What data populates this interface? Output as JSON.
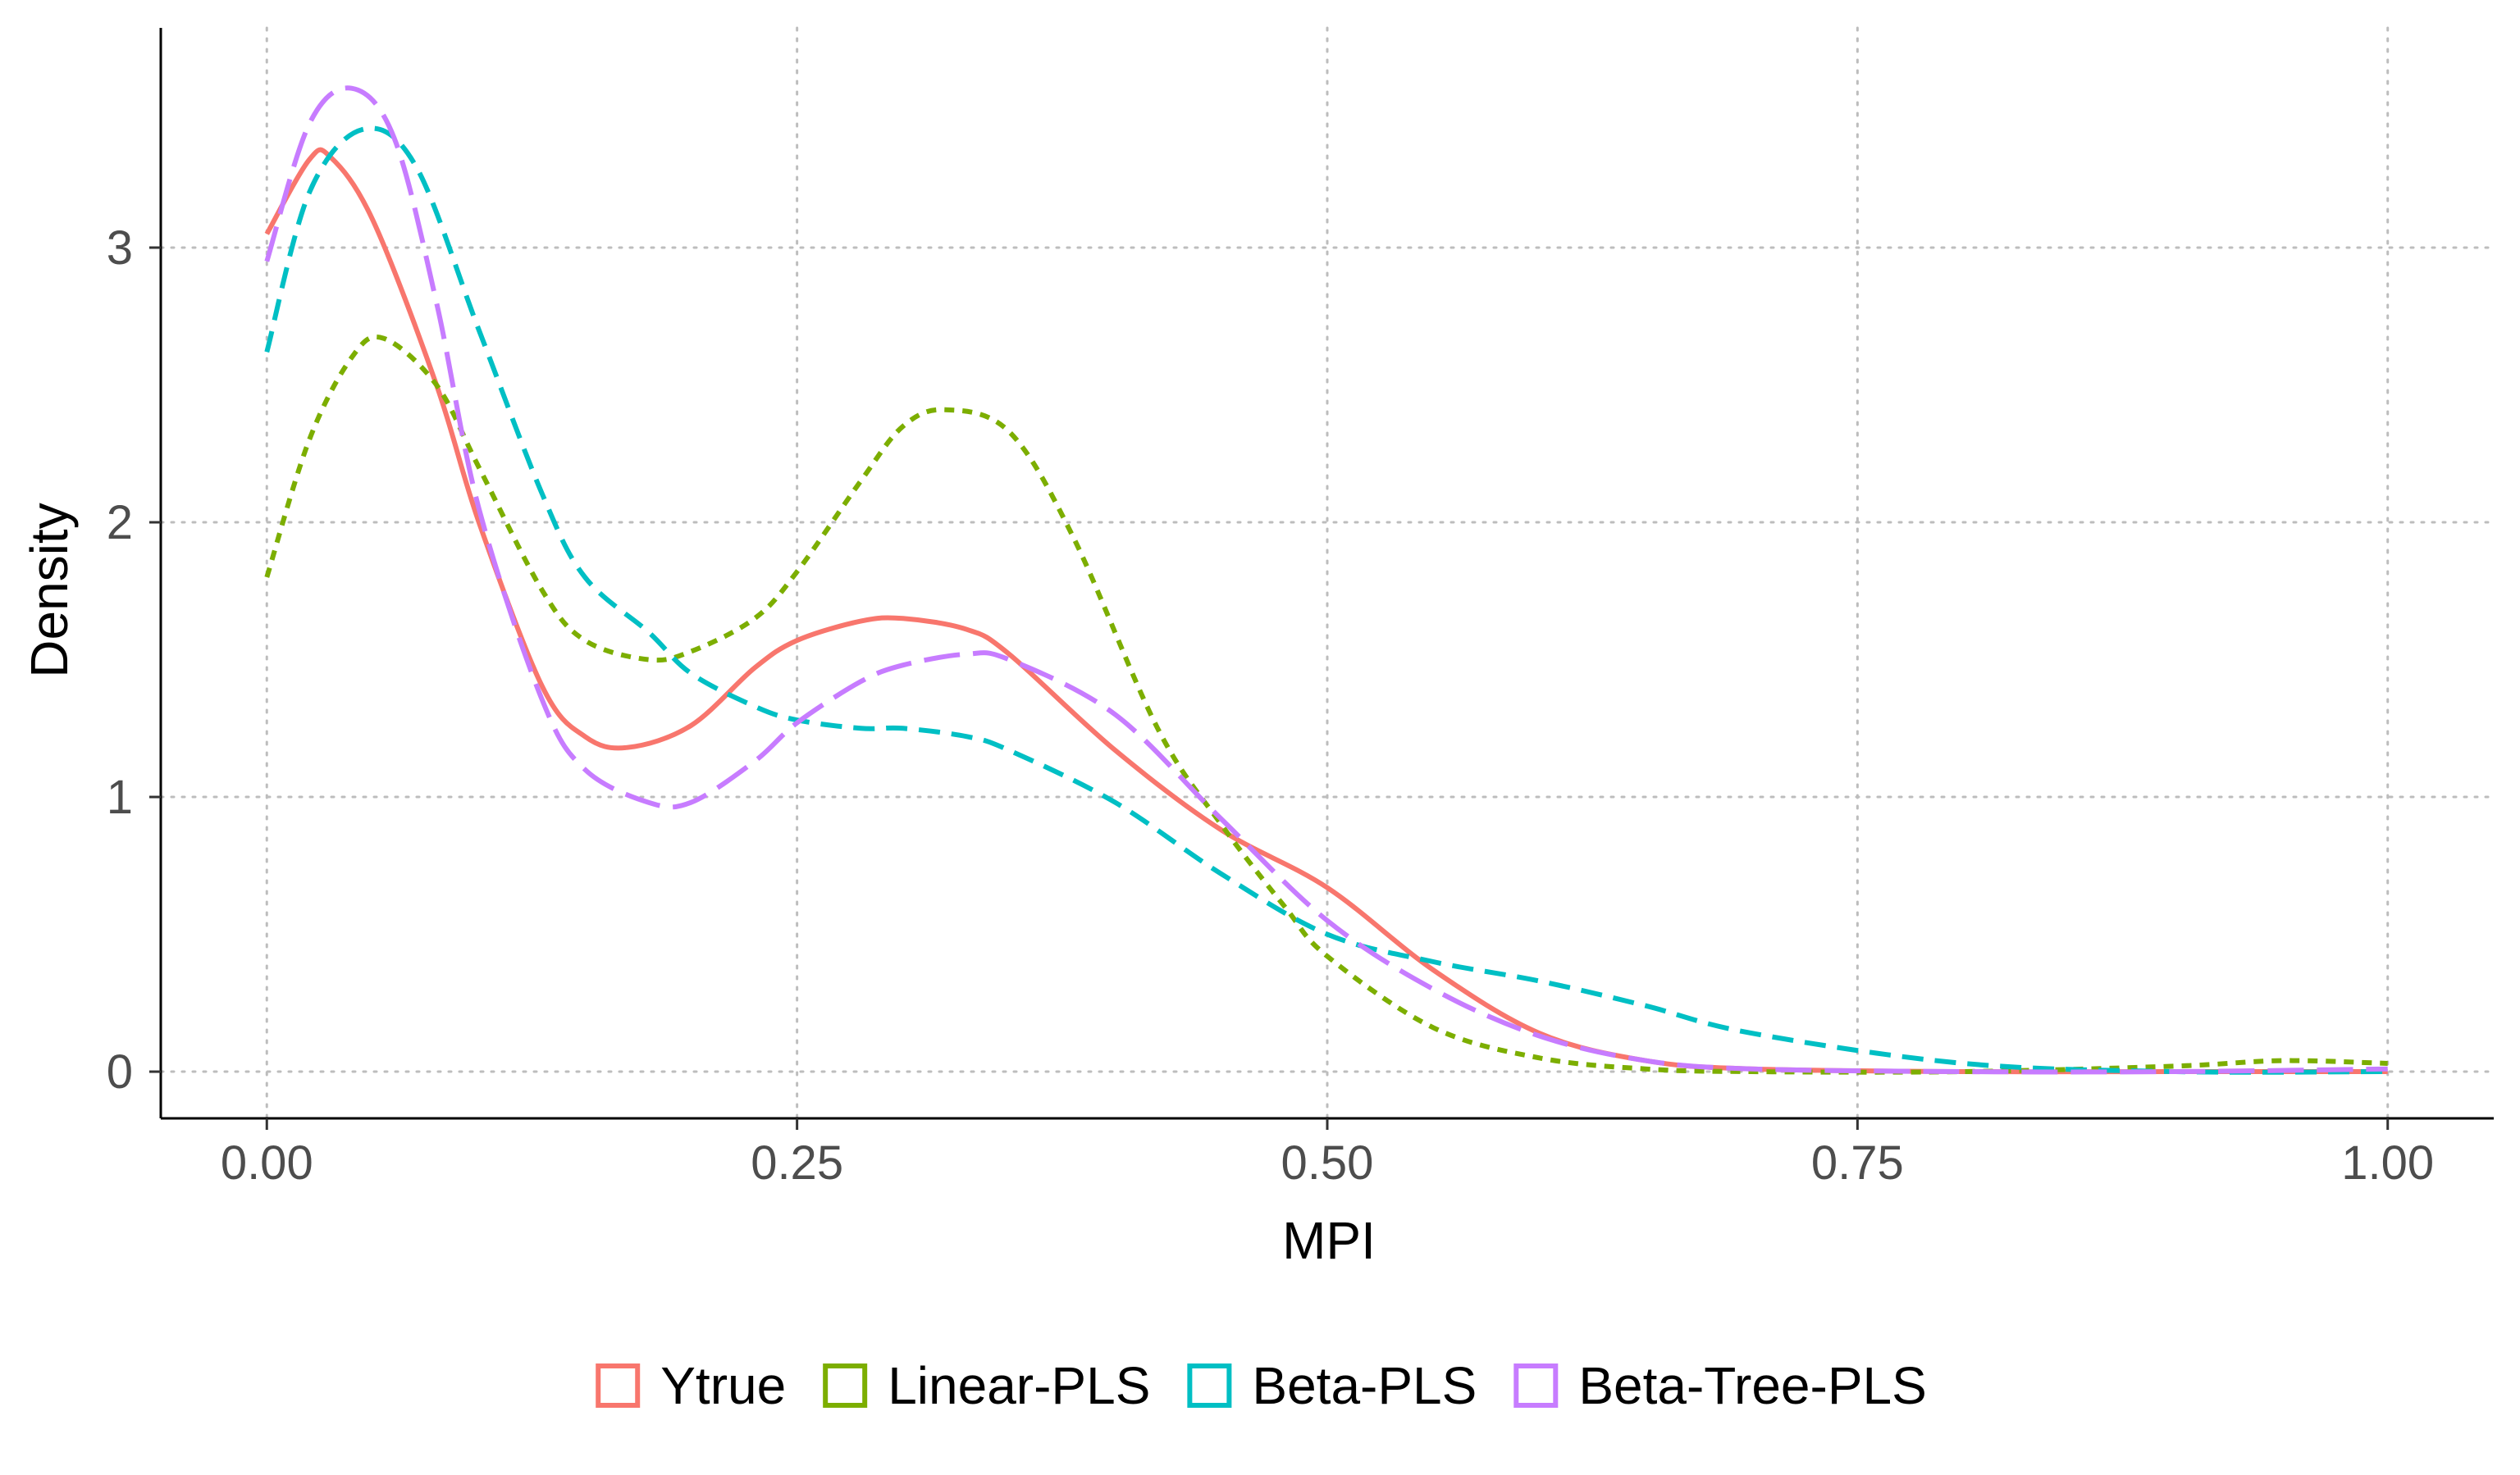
{
  "chart_data": {
    "type": "line",
    "title": "",
    "xlabel": "MPI",
    "ylabel": "Density",
    "xlim": [
      -0.05,
      1.05
    ],
    "ylim": [
      -0.17,
      3.8
    ],
    "x_ticks": [
      {
        "value": 0.0,
        "label": "0.00"
      },
      {
        "value": 0.25,
        "label": "0.25"
      },
      {
        "value": 0.5,
        "label": "0.50"
      },
      {
        "value": 0.75,
        "label": "0.75"
      },
      {
        "value": 1.0,
        "label": "1.00"
      }
    ],
    "y_ticks": [
      {
        "value": 0,
        "label": "0"
      },
      {
        "value": 1,
        "label": "1"
      },
      {
        "value": 2,
        "label": "2"
      },
      {
        "value": 3,
        "label": "3"
      }
    ],
    "grid": true,
    "legend_position": "bottom",
    "series": [
      {
        "name": "Ytrue",
        "color": "#F8766D",
        "dash": "solid",
        "x": [
          0.0,
          0.02,
          0.03,
          0.05,
          0.08,
          0.1,
          0.13,
          0.15,
          0.17,
          0.2,
          0.23,
          0.25,
          0.28,
          0.3,
          0.33,
          0.35,
          0.4,
          0.45,
          0.5,
          0.55,
          0.6,
          0.65,
          0.7,
          0.8,
          0.9,
          1.0
        ],
        "y": [
          3.05,
          3.32,
          3.33,
          3.1,
          2.5,
          2.0,
          1.4,
          1.22,
          1.18,
          1.26,
          1.47,
          1.57,
          1.64,
          1.65,
          1.61,
          1.52,
          1.17,
          0.88,
          0.67,
          0.37,
          0.14,
          0.04,
          0.01,
          0.0,
          0.0,
          0.0
        ]
      },
      {
        "name": "Linear-PLS",
        "color": "#7CAE00",
        "dash": "dotted",
        "x": [
          0.0,
          0.02,
          0.04,
          0.055,
          0.08,
          0.1,
          0.13,
          0.15,
          0.18,
          0.2,
          0.23,
          0.25,
          0.28,
          0.3,
          0.32,
          0.35,
          0.38,
          0.42,
          0.45,
          0.48,
          0.5,
          0.55,
          0.6,
          0.65,
          0.7,
          0.8,
          0.9,
          0.95,
          1.0
        ],
        "y": [
          1.8,
          2.3,
          2.6,
          2.67,
          2.5,
          2.2,
          1.75,
          1.57,
          1.5,
          1.53,
          1.65,
          1.82,
          2.15,
          2.35,
          2.41,
          2.33,
          1.95,
          1.25,
          0.9,
          0.6,
          0.42,
          0.16,
          0.05,
          0.01,
          0.0,
          0.0,
          0.02,
          0.04,
          0.03
        ]
      },
      {
        "name": "Beta-PLS",
        "color": "#00BFC4",
        "dash": "dashed",
        "x": [
          0.0,
          0.02,
          0.045,
          0.07,
          0.1,
          0.13,
          0.15,
          0.18,
          0.2,
          0.23,
          0.25,
          0.28,
          0.3,
          0.33,
          0.35,
          0.4,
          0.45,
          0.5,
          0.55,
          0.6,
          0.65,
          0.7,
          0.8,
          0.9,
          1.0
        ],
        "y": [
          2.62,
          3.2,
          3.43,
          3.3,
          2.7,
          2.1,
          1.8,
          1.6,
          1.45,
          1.33,
          1.28,
          1.25,
          1.25,
          1.22,
          1.17,
          0.98,
          0.72,
          0.5,
          0.4,
          0.33,
          0.24,
          0.14,
          0.03,
          0.0,
          0.0
        ]
      },
      {
        "name": "Beta-Tree-PLS",
        "color": "#C77CFF",
        "dash": "longdash",
        "x": [
          0.0,
          0.02,
          0.04,
          0.06,
          0.08,
          0.1,
          0.13,
          0.15,
          0.18,
          0.2,
          0.23,
          0.25,
          0.28,
          0.3,
          0.33,
          0.35,
          0.4,
          0.45,
          0.5,
          0.55,
          0.6,
          0.65,
          0.7,
          0.8,
          0.9,
          1.0
        ],
        "y": [
          2.95,
          3.45,
          3.58,
          3.4,
          2.8,
          2.05,
          1.35,
          1.1,
          0.98,
          0.98,
          1.13,
          1.27,
          1.42,
          1.48,
          1.52,
          1.5,
          1.3,
          0.92,
          0.55,
          0.3,
          0.13,
          0.04,
          0.01,
          0.0,
          0.0,
          0.01
        ]
      }
    ]
  }
}
